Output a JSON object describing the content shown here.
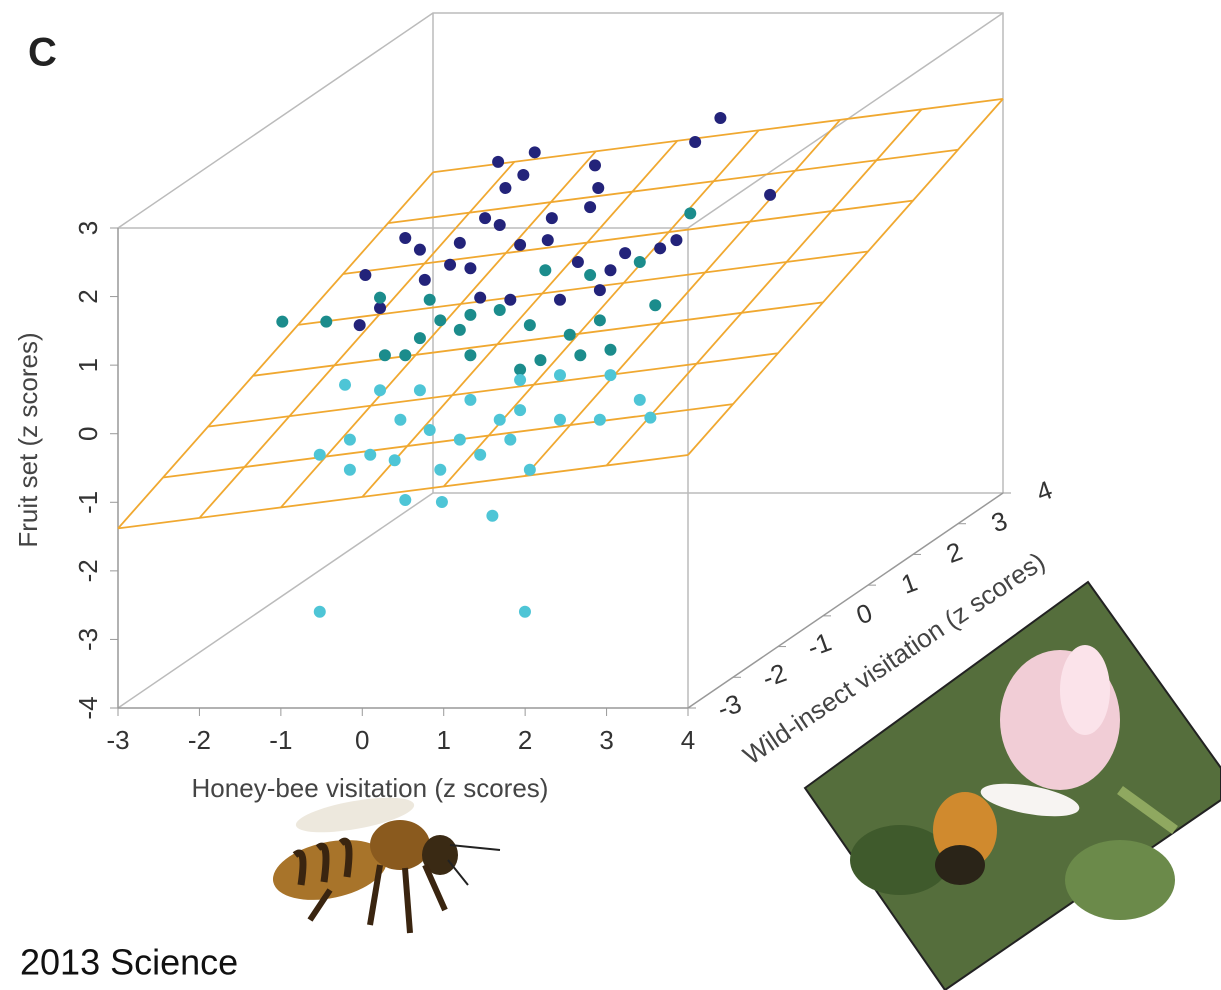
{
  "chart_data": {
    "type": "scatter3d",
    "panel_label": "C",
    "x_label": "Honey-bee visitation (z scores)",
    "y_label": "Wild-insect visitation (z scores)",
    "z_label": "Fruit set (z scores)",
    "xlim": [
      -3,
      4
    ],
    "xticks": [
      -3,
      -2,
      -1,
      0,
      1,
      2,
      3,
      4
    ],
    "ylim": [
      -3,
      4
    ],
    "yticks": [
      -3,
      -2,
      -1,
      0,
      1,
      2,
      3,
      4
    ],
    "zlim": [
      -4,
      3
    ],
    "zticks": [
      -4,
      -3,
      -2,
      -1,
      0,
      1,
      2,
      3
    ],
    "plane": {
      "intercept": -0.04,
      "x_coef": 0.153,
      "y_coef": 0.294,
      "color": "#f0a830"
    },
    "series": [
      {
        "color": "#23237a",
        "x": [
          2.74,
          2.43,
          3.35,
          0.46,
          0.01,
          0.32,
          0.1,
          1.2,
          1.24,
          -0.15,
          0.03,
          0.67,
          1.14,
          -1.13,
          -0.95,
          -1.62,
          -1.69,
          -1.44,
          -0.46,
          -0.33,
          0.28,
          0.62,
          0.99,
          1.57,
          2.0,
          2.2,
          -0.21,
          0.16,
          -0.58,
          -0.89,
          0.77,
          1.26,
          1.39
        ],
        "y": [
          0,
          0,
          0,
          0,
          0,
          0,
          0,
          0,
          0,
          0,
          0,
          0,
          0,
          0,
          0,
          0,
          0,
          0,
          0,
          0,
          0,
          0,
          0,
          0,
          0,
          0,
          0,
          0,
          0,
          0,
          0,
          0,
          0
        ],
        "z": [
          3.26,
          2.91,
          2.14,
          2.76,
          2.62,
          2.43,
          2.24,
          2.57,
          2.24,
          1.8,
          1.7,
          1.8,
          1.96,
          1.51,
          1.34,
          0.97,
          0.24,
          0.49,
          1.44,
          1.07,
          1.41,
          1.48,
          1.16,
          1.29,
          1.36,
          1.48,
          0.64,
          0.61,
          1.12,
          0.9,
          0.61,
          0.75,
          1.04
        ]
      },
      {
        "color": "#1b8c8c",
        "x": [
          -2.64,
          -2.1,
          -1.44,
          2.37,
          1.75,
          1.94,
          -1.38,
          -0.95,
          -0.7,
          -0.46,
          0.03,
          0.4,
          0.89,
          1.26,
          -0.33,
          0.59,
          1.14,
          -1.13,
          0.53,
          1.02,
          1.39,
          -0.83,
          -0.33,
          0.28
        ],
        "y": [
          0,
          0,
          0,
          0,
          0,
          0,
          0,
          0,
          0,
          0,
          0,
          0,
          0,
          0,
          0,
          0,
          0,
          0,
          0,
          0,
          0,
          0,
          0,
          0
        ],
        "z": [
          0.29,
          0.29,
          0.64,
          1.87,
          1.16,
          0.53,
          -0.2,
          0.05,
          0.31,
          0.17,
          0.46,
          0.24,
          0.1,
          0.31,
          -0.2,
          1.04,
          0.97,
          -0.2,
          -0.27,
          -0.2,
          -0.12,
          0.61,
          0.39,
          -0.41
        ]
      },
      {
        "color": "#4ec5d6",
        "x": [
          -2.18,
          0.34,
          -0.06,
          -0.68,
          -1.13,
          -2.18,
          -1.81,
          -1.56,
          -1.19,
          -0.83,
          -0.46,
          0.03,
          0.28,
          0.77,
          1.26,
          1.75,
          1.88,
          -1.87,
          -1.44,
          -0.95,
          -0.33,
          0.28,
          0.77,
          1.39,
          -1.81,
          -1.26,
          -0.7,
          -0.21,
          0.4,
          0.16
        ],
        "y": [
          0,
          0,
          0,
          0,
          0,
          0,
          0,
          0,
          0,
          0,
          0,
          0,
          0,
          0,
          0,
          0,
          0,
          0,
          0,
          0,
          0,
          0,
          0,
          0,
          0,
          0,
          0,
          0,
          0,
          0
        ],
        "z": [
          -3.94,
          -3.94,
          -2.54,
          -2.34,
          -2.31,
          -1.65,
          -1.87,
          -1.65,
          -1.14,
          -1.29,
          -1.43,
          -1.14,
          -1.0,
          -1.14,
          -1.14,
          -0.85,
          -1.11,
          -0.63,
          -0.71,
          -0.71,
          -0.85,
          -0.56,
          -0.49,
          -0.49,
          -1.43,
          -1.73,
          -1.87,
          -1.65,
          -1.87,
          -1.43
        ]
      }
    ],
    "caption": "2013 Science"
  }
}
